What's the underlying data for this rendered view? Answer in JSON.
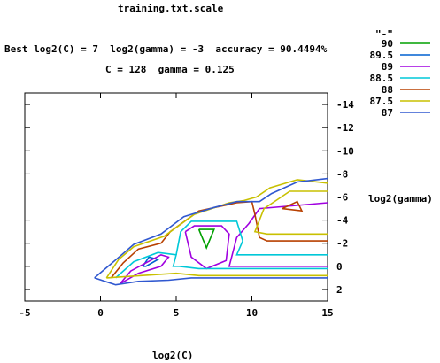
{
  "chart_data": {
    "type": "contour",
    "title": "training.txt.scale",
    "subtitle_line1": "Best log2(C) = 7  log2(gamma) = -3  accuracy = 90.4494%",
    "subtitle_line2": "C = 128  gamma = 0.125",
    "xlabel": "log2(C)",
    "ylabel": "log2(gamma)",
    "xlim": [
      -5,
      15
    ],
    "ylim": [
      3,
      -15
    ],
    "x_ticks": [
      -5,
      0,
      5,
      10,
      15
    ],
    "y_ticks": [
      -14,
      -12,
      -10,
      -8,
      -6,
      -4,
      -2,
      0,
      2
    ],
    "y_axis_side": "right",
    "legend_title": "\"-\"",
    "legend_position": "top-right, outside plot",
    "series": [
      {
        "name": "90",
        "color": "#00a000",
        "paths": [
          [
            [
              6.5,
              -3.2
            ],
            [
              7.0,
              -1.6
            ],
            [
              7.5,
              -3.2
            ],
            [
              6.5,
              -3.2
            ]
          ]
        ]
      },
      {
        "name": "89.5",
        "color": "#0060d0",
        "paths": [
          [
            [
              2.8,
              0.0
            ],
            [
              3.2,
              -0.8
            ],
            [
              3.8,
              -0.6
            ],
            [
              3.0,
              0.0
            ],
            [
              2.8,
              0.0
            ]
          ]
        ]
      },
      {
        "name": "89",
        "color": "#a000e0",
        "paths": [
          [
            [
              5.6,
              -3.0
            ],
            [
              6.2,
              -3.5
            ],
            [
              8.0,
              -3.5
            ],
            [
              8.5,
              -2.8
            ],
            [
              8.3,
              -0.5
            ],
            [
              7.0,
              0.2
            ],
            [
              6.0,
              -0.8
            ],
            [
              5.6,
              -3.0
            ]
          ],
          [
            [
              1.3,
              1.5
            ],
            [
              2.0,
              0.4
            ],
            [
              4.0,
              -1.0
            ],
            [
              4.5,
              -0.8
            ],
            [
              4.0,
              0.0
            ],
            [
              2.5,
              0.6
            ],
            [
              1.3,
              1.5
            ]
          ],
          [
            [
              15,
              0.0
            ],
            [
              8.5,
              0.0
            ],
            [
              9.0,
              -2.5
            ],
            [
              9.8,
              -3.7
            ],
            [
              10.5,
              -5.0
            ],
            [
              15,
              -5.5
            ]
          ]
        ]
      },
      {
        "name": "88.5",
        "color": "#00c8d8",
        "paths": [
          [
            [
              5.0,
              -1.0
            ],
            [
              5.3,
              -3.0
            ],
            [
              6.0,
              -3.9
            ],
            [
              9.0,
              -3.9
            ],
            [
              9.4,
              -2.2
            ],
            [
              9.0,
              -1.0
            ],
            [
              15,
              -1.0
            ]
          ],
          [
            [
              1.0,
              1.0
            ],
            [
              2.2,
              -0.4
            ],
            [
              3.8,
              -1.2
            ],
            [
              5.0,
              -1.0
            ],
            [
              4.8,
              0.0
            ],
            [
              5.2,
              0.0
            ],
            [
              6.5,
              0.2
            ],
            [
              15,
              0.2
            ]
          ]
        ]
      },
      {
        "name": "88",
        "color": "#b84000",
        "paths": [
          [
            [
              12.0,
              -5.0
            ],
            [
              13.0,
              -5.6
            ],
            [
              13.3,
              -4.8
            ],
            [
              12.0,
              -5.0
            ]
          ],
          [
            [
              0.7,
              1.0
            ],
            [
              1.5,
              -0.3
            ],
            [
              2.5,
              -1.5
            ],
            [
              4.0,
              -2.0
            ],
            [
              4.6,
              -3.0
            ],
            [
              6.5,
              -4.8
            ],
            [
              9.0,
              -5.5
            ],
            [
              10.0,
              -5.6
            ],
            [
              10.2,
              -4.5
            ],
            [
              10.5,
              -2.5
            ],
            [
              11.0,
              -2.2
            ],
            [
              15,
              -2.2
            ]
          ]
        ]
      },
      {
        "name": "87.5",
        "color": "#c8c000",
        "paths": [
          [
            [
              0.4,
              1.0
            ],
            [
              1.2,
              -0.6
            ],
            [
              2.2,
              -1.7
            ],
            [
              4.2,
              -2.6
            ],
            [
              6.2,
              -4.5
            ],
            [
              8.5,
              -5.5
            ],
            [
              9.5,
              -5.7
            ],
            [
              10.3,
              -6.0
            ],
            [
              11.2,
              -6.8
            ],
            [
              13.0,
              -7.5
            ],
            [
              15,
              -7.2
            ]
          ],
          [
            [
              15,
              -6.5
            ],
            [
              12.5,
              -6.5
            ],
            [
              10.8,
              -5.0
            ],
            [
              10.2,
              -3.0
            ],
            [
              11.0,
              -2.8
            ],
            [
              15,
              -2.8
            ]
          ],
          [
            [
              0.4,
              1.0
            ],
            [
              5.0,
              0.6
            ],
            [
              6.5,
              0.8
            ],
            [
              15,
              0.8
            ]
          ]
        ]
      },
      {
        "name": "87",
        "color": "#3058d0",
        "paths": [
          [
            [
              -0.4,
              1.0
            ],
            [
              1.4,
              -1.0
            ],
            [
              2.2,
              -1.9
            ],
            [
              4.0,
              -2.8
            ],
            [
              5.5,
              -4.3
            ],
            [
              7.5,
              -5.1
            ],
            [
              9.0,
              -5.6
            ],
            [
              10.5,
              -5.6
            ],
            [
              11.3,
              -6.3
            ],
            [
              13.0,
              -7.3
            ],
            [
              15,
              -7.6
            ]
          ],
          [
            [
              -0.4,
              1.0
            ],
            [
              1.0,
              1.6
            ],
            [
              2.5,
              1.3
            ],
            [
              4.5,
              1.2
            ],
            [
              6.0,
              1.0
            ],
            [
              15,
              1.0
            ]
          ]
        ]
      }
    ]
  }
}
